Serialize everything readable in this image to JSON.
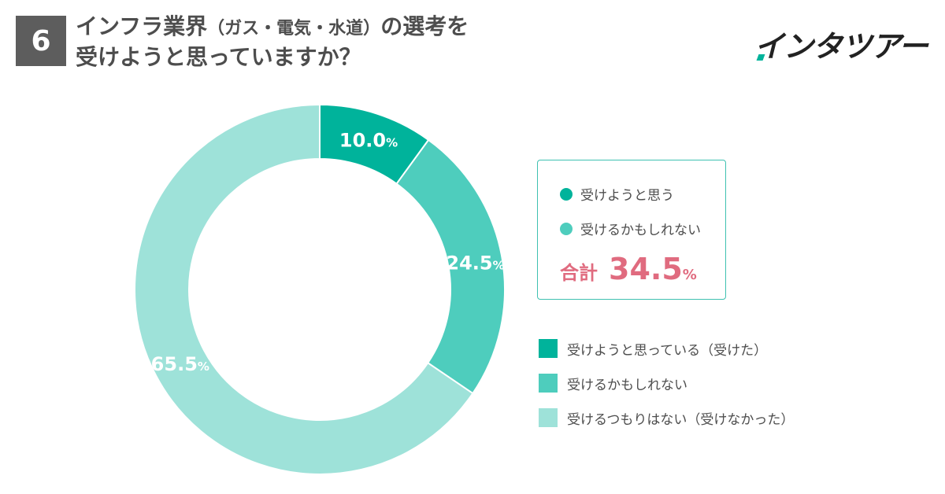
{
  "header": {
    "question_number": "6",
    "title_part1": "インフラ業界",
    "title_paren": "（ガス・電気・水道）",
    "title_part2": "の選考を",
    "title_line2": "受けようと思っていますか？"
  },
  "logo": {
    "text": "インタツアー"
  },
  "colors": {
    "dark_teal": "#00b39b",
    "mid_teal": "#4ecdbd",
    "light_teal": "#9ee2d9",
    "total_pink": "#e06b7f",
    "badge_gray": "#5d5d5d"
  },
  "chart_data": {
    "type": "pie",
    "donut": true,
    "categories": [
      "受けようと思っている（受けた）",
      "受けるかもしれない",
      "受けるつもりはない（受けなかった）"
    ],
    "values": [
      10.0,
      24.5,
      65.5
    ],
    "value_labels": [
      "10.0",
      "24.5",
      "65.5"
    ],
    "unit": "%",
    "colors": [
      "#00b39b",
      "#4ecdbd",
      "#9ee2d9"
    ],
    "legend": "right",
    "start": "top",
    "direction": "clockwise"
  },
  "summary": {
    "item1": "受けようと思う",
    "item2": "受けるかもしれない",
    "total_label": "合計",
    "total_value": "34.5",
    "total_unit": "%"
  }
}
